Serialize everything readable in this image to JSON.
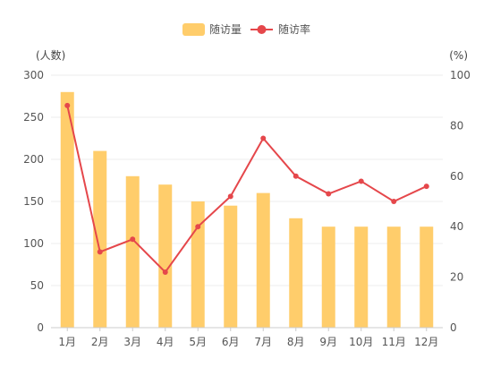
{
  "chart_data": {
    "type": "bar",
    "categories": [
      "1月",
      "2月",
      "3月",
      "4月",
      "5月",
      "6月",
      "7月",
      "8月",
      "9月",
      "10月",
      "11月",
      "12月"
    ],
    "series": [
      {
        "name": "随访量",
        "type": "bar",
        "axis": "left",
        "color": "#FFCD6B",
        "values": [
          280,
          210,
          180,
          170,
          150,
          145,
          160,
          130,
          120,
          120,
          120,
          120
        ]
      },
      {
        "name": "随访率",
        "type": "line",
        "axis": "right",
        "color": "#E5474B",
        "values": [
          88,
          30,
          35,
          22,
          40,
          52,
          75,
          60,
          53,
          58,
          50,
          56
        ]
      }
    ],
    "left_axis": {
      "unit_label": "(人数)",
      "range": [
        0,
        300
      ],
      "ticks": [
        0,
        50,
        100,
        150,
        200,
        250,
        300
      ]
    },
    "right_axis": {
      "unit_label": "(%)",
      "range": [
        0,
        100
      ],
      "ticks": [
        0,
        20,
        40,
        60,
        80,
        100
      ]
    },
    "grid": true,
    "legend_position": "top-center"
  }
}
